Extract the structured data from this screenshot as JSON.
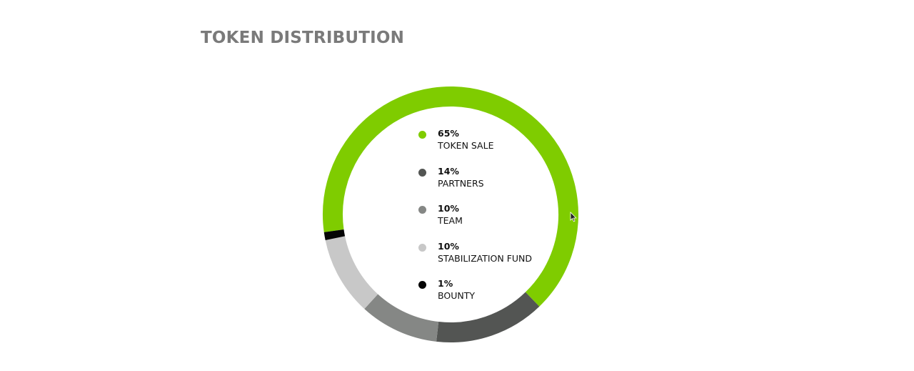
{
  "header": {
    "title": "TOKEN DISTRIBUTION"
  },
  "chart_data": {
    "type": "pie",
    "title": "TOKEN DISTRIBUTION",
    "categories": [
      "TOKEN SALE",
      "PARTNERS",
      "TEAM",
      "STABILIZATION FUND",
      "BOUNTY"
    ],
    "values": [
      65,
      14,
      10,
      10,
      1
    ],
    "value_labels": [
      "65%",
      "14%",
      "10%",
      "10%",
      "1%"
    ],
    "colors": [
      "#7fcc00",
      "#535553",
      "#858785",
      "#c8c8c8",
      "#050505"
    ],
    "style": "donut",
    "legend_position": "center"
  }
}
